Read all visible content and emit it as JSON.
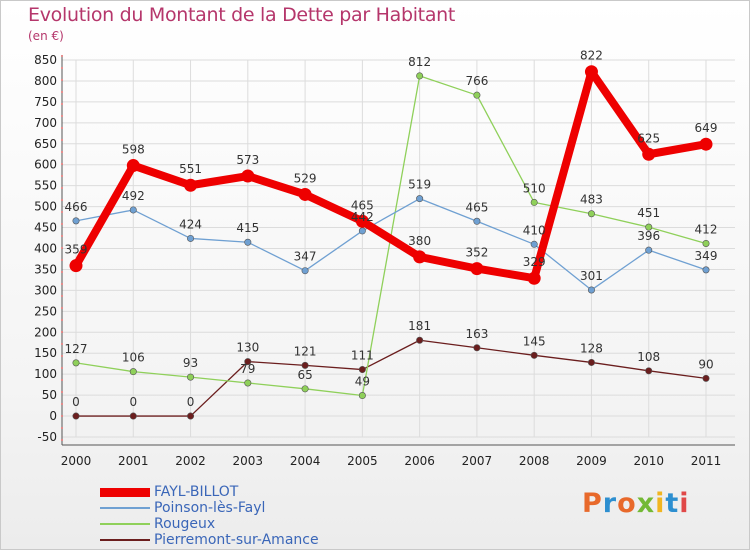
{
  "title": "Evolution du Montant de la Dette par Habitant",
  "unit_label": "(en €)",
  "brand": {
    "text": "Proxiti",
    "colors": [
      "#e8692b",
      "#2d8fd0",
      "#e8692b",
      "#73b935",
      "#f1b520",
      "#2d8fd0",
      "#e04848"
    ]
  },
  "chart_data": {
    "type": "line",
    "categories": [
      "2000",
      "2001",
      "2002",
      "2003",
      "2004",
      "2005",
      "2006",
      "2007",
      "2008",
      "2009",
      "2010",
      "2011"
    ],
    "ylim": [
      -50,
      850
    ],
    "y_ticks": [
      "-50",
      "0",
      "50",
      "100",
      "150",
      "200",
      "250",
      "300",
      "350",
      "400",
      "450",
      "500",
      "550",
      "600",
      "650",
      "700",
      "750",
      "800",
      "850"
    ],
    "grid": true,
    "legend_position": "bottom-left",
    "series": [
      {
        "name": "Pierremont-sur-Amance",
        "color": "#6b1e1e",
        "values": [
          0,
          0,
          0,
          130,
          121,
          111,
          181,
          163,
          145,
          128,
          108,
          90
        ],
        "labels": [
          "0",
          "0",
          "0",
          "130",
          "121",
          "111",
          "181",
          "163",
          "145",
          "128",
          "108",
          "90"
        ]
      },
      {
        "name": "Rougeux",
        "color": "#8fd05a",
        "values": [
          127,
          106,
          93,
          79,
          65,
          49,
          812,
          766,
          510,
          483,
          451,
          412
        ],
        "labels": [
          "127",
          "106",
          "93",
          "79",
          "65",
          "49",
          "812",
          "766",
          "510",
          "483",
          "451",
          "412"
        ]
      },
      {
        "name": "Poinson-lès-Fayl",
        "color": "#6fa0d2",
        "values": [
          466,
          492,
          424,
          415,
          347,
          442,
          519,
          465,
          410,
          301,
          396,
          349
        ],
        "labels": [
          "466",
          "492",
          "424",
          "415",
          "347",
          "442",
          "519",
          "465",
          "410",
          "301",
          "396",
          "349"
        ]
      },
      {
        "name": "FAYL-BILLOT",
        "color": "#ee0000",
        "values": [
          359,
          598,
          551,
          573,
          529,
          465,
          380,
          352,
          329,
          822,
          625,
          649
        ],
        "labels": [
          "359",
          "598",
          "551",
          "573",
          "529",
          "465",
          "380",
          "352",
          "329",
          "822",
          "625",
          "649"
        ]
      }
    ]
  },
  "legend_order": [
    "FAYL-BILLOT",
    "Poinson-lès-Fayl",
    "Rougeux",
    "Pierremont-sur-Amance"
  ]
}
